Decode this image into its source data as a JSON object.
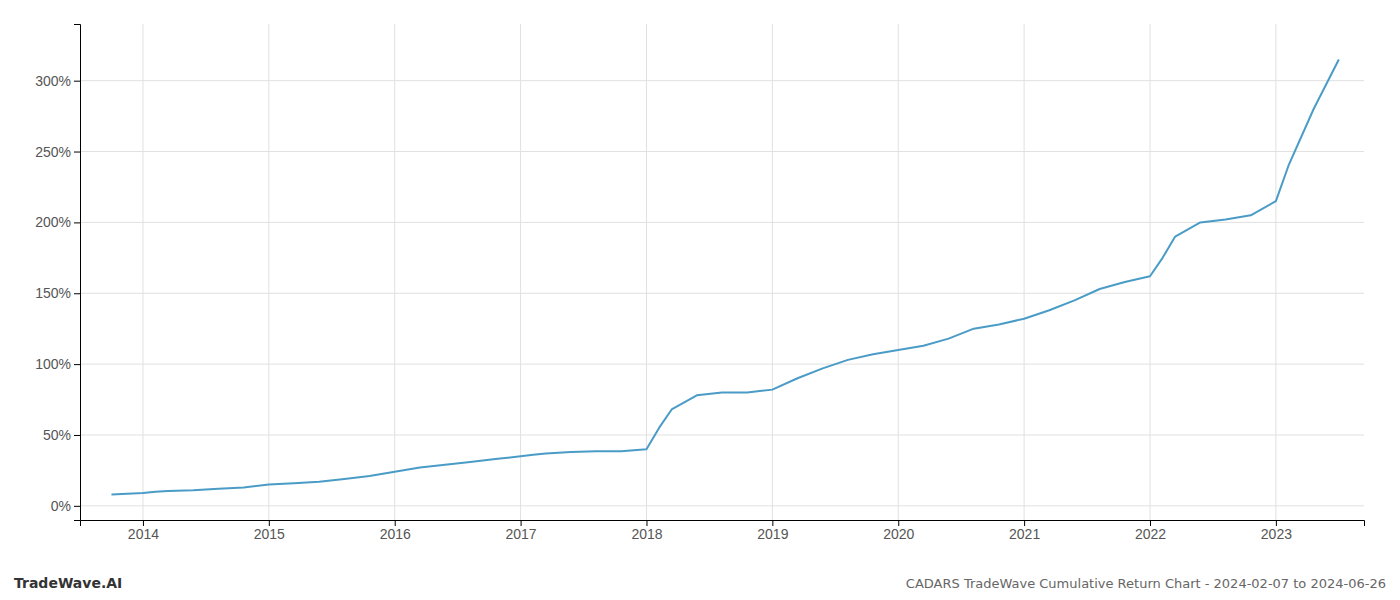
{
  "chart_data": {
    "type": "line",
    "title": "CADARS TradeWave Cumulative Return Chart - 2024-02-07 to 2024-06-26",
    "annotations": [
      "TradeWave.AI"
    ],
    "x": [
      2013.75,
      2014.0,
      2014.1,
      2014.2,
      2014.4,
      2014.6,
      2014.8,
      2015.0,
      2015.2,
      2015.4,
      2015.6,
      2015.8,
      2016.0,
      2016.2,
      2016.4,
      2016.6,
      2016.8,
      2017.0,
      2017.1,
      2017.2,
      2017.4,
      2017.6,
      2017.8,
      2018.0,
      2018.1,
      2018.2,
      2018.4,
      2018.6,
      2018.8,
      2019.0,
      2019.2,
      2019.4,
      2019.6,
      2019.8,
      2020.0,
      2020.2,
      2020.4,
      2020.6,
      2020.8,
      2021.0,
      2021.2,
      2021.4,
      2021.6,
      2021.8,
      2022.0,
      2022.1,
      2022.2,
      2022.4,
      2022.6,
      2022.8,
      2023.0,
      2023.1,
      2023.3,
      2023.5
    ],
    "values": [
      8,
      9,
      10,
      10.5,
      11,
      12,
      13,
      15,
      16,
      17,
      19,
      21,
      24,
      27,
      29,
      31,
      33,
      35,
      36,
      37,
      38,
      38.5,
      38.5,
      40,
      55,
      68,
      78,
      80,
      80,
      82,
      90,
      97,
      103,
      107,
      110,
      113,
      118,
      125,
      128,
      132,
      138,
      145,
      153,
      158,
      162,
      175,
      190,
      200,
      202,
      205,
      215,
      240,
      280,
      315
    ],
    "color": "#4a9cc7",
    "xlim": [
      2013.5,
      2023.7
    ],
    "ylim": [
      -10,
      340
    ],
    "xticks": [
      2014,
      2015,
      2016,
      2017,
      2018,
      2019,
      2020,
      2021,
      2022,
      2023
    ],
    "yticks": [
      {
        "value": 0,
        "label": "0%"
      },
      {
        "value": 50,
        "label": "50%"
      },
      {
        "value": 100,
        "label": "100%"
      },
      {
        "value": 150,
        "label": "150%"
      },
      {
        "value": 200,
        "label": "200%"
      },
      {
        "value": 250,
        "label": "250%"
      },
      {
        "value": 300,
        "label": "300%"
      }
    ],
    "grid": true
  }
}
